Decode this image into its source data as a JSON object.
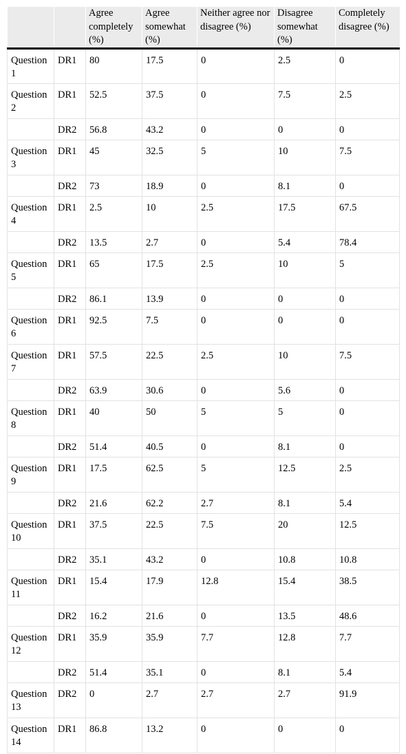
{
  "table": {
    "headers": [
      "",
      "",
      "Agree completely (%)",
      "Agree somewhat (%)",
      "Neither agree nor disagree (%)",
      "Disagree somewhat (%)",
      "Completely disagree (%)"
    ],
    "rows": [
      {
        "question": "Question 1",
        "dr": "DR1",
        "values": [
          "80",
          "17.5",
          "0",
          "2.5",
          "0"
        ]
      },
      {
        "question": "Question 2",
        "dr": "DR1",
        "values": [
          "52.5",
          "37.5",
          "0",
          "7.5",
          "2.5"
        ]
      },
      {
        "question": "",
        "dr": "DR2",
        "values": [
          "56.8",
          "43.2",
          "0",
          "0",
          "0"
        ]
      },
      {
        "question": "Question 3",
        "dr": "DR1",
        "values": [
          "45",
          "32.5",
          "5",
          "10",
          "7.5"
        ]
      },
      {
        "question": "",
        "dr": "DR2",
        "values": [
          "73",
          "18.9",
          "0",
          "8.1",
          "0"
        ]
      },
      {
        "question": "Question 4",
        "dr": "DR1",
        "values": [
          "2.5",
          "10",
          "2.5",
          "17.5",
          "67.5"
        ]
      },
      {
        "question": "",
        "dr": "DR2",
        "values": [
          "13.5",
          "2.7",
          "0",
          "5.4",
          "78.4"
        ]
      },
      {
        "question": "Question 5",
        "dr": "DR1",
        "values": [
          "65",
          "17.5",
          "2.5",
          "10",
          "5"
        ]
      },
      {
        "question": "",
        "dr": "DR2",
        "values": [
          "86.1",
          "13.9",
          "0",
          "0",
          "0"
        ]
      },
      {
        "question": "Question 6",
        "dr": "DR1",
        "values": [
          "92.5",
          "7.5",
          "0",
          "0",
          "0"
        ]
      },
      {
        "question": "Question 7",
        "dr": "DR1",
        "values": [
          "57.5",
          "22.5",
          "2.5",
          "10",
          "7.5"
        ]
      },
      {
        "question": "",
        "dr": "DR2",
        "values": [
          "63.9",
          "30.6",
          "0",
          "5.6",
          "0"
        ]
      },
      {
        "question": "Question 8",
        "dr": "DR1",
        "values": [
          "40",
          "50",
          "5",
          "5",
          "0"
        ]
      },
      {
        "question": "",
        "dr": "DR2",
        "values": [
          "51.4",
          "40.5",
          "0",
          "8.1",
          "0"
        ]
      },
      {
        "question": "Question 9",
        "dr": "DR1",
        "values": [
          "17.5",
          "62.5",
          "5",
          "12.5",
          "2.5"
        ]
      },
      {
        "question": "",
        "dr": "DR2",
        "values": [
          "21.6",
          "62.2",
          "2.7",
          "8.1",
          "5.4"
        ]
      },
      {
        "question": "Question 10",
        "dr": "DR1",
        "values": [
          "37.5",
          "22.5",
          "7.5",
          "20",
          "12.5"
        ]
      },
      {
        "question": "",
        "dr": "DR2",
        "values": [
          "35.1",
          "43.2",
          "0",
          "10.8",
          "10.8"
        ]
      },
      {
        "question": "Question 11",
        "dr": "DR1",
        "values": [
          "15.4",
          "17.9",
          "12.8",
          "15.4",
          "38.5"
        ]
      },
      {
        "question": "",
        "dr": "DR2",
        "values": [
          "16.2",
          "21.6",
          "0",
          "13.5",
          "48.6"
        ]
      },
      {
        "question": "Question 12",
        "dr": "DR1",
        "values": [
          "35.9",
          "35.9",
          "7.7",
          "12.8",
          "7.7"
        ]
      },
      {
        "question": "",
        "dr": "DR2",
        "values": [
          "51.4",
          "35.1",
          "0",
          "8.1",
          "5.4"
        ]
      },
      {
        "question": "Question 13",
        "dr": "DR2",
        "values": [
          "0",
          "2.7",
          "2.7",
          "2.7",
          "91.9"
        ]
      },
      {
        "question": "Question 14",
        "dr": "DR1",
        "values": [
          "86.8",
          "13.2",
          "0",
          "0",
          "0"
        ]
      }
    ]
  }
}
